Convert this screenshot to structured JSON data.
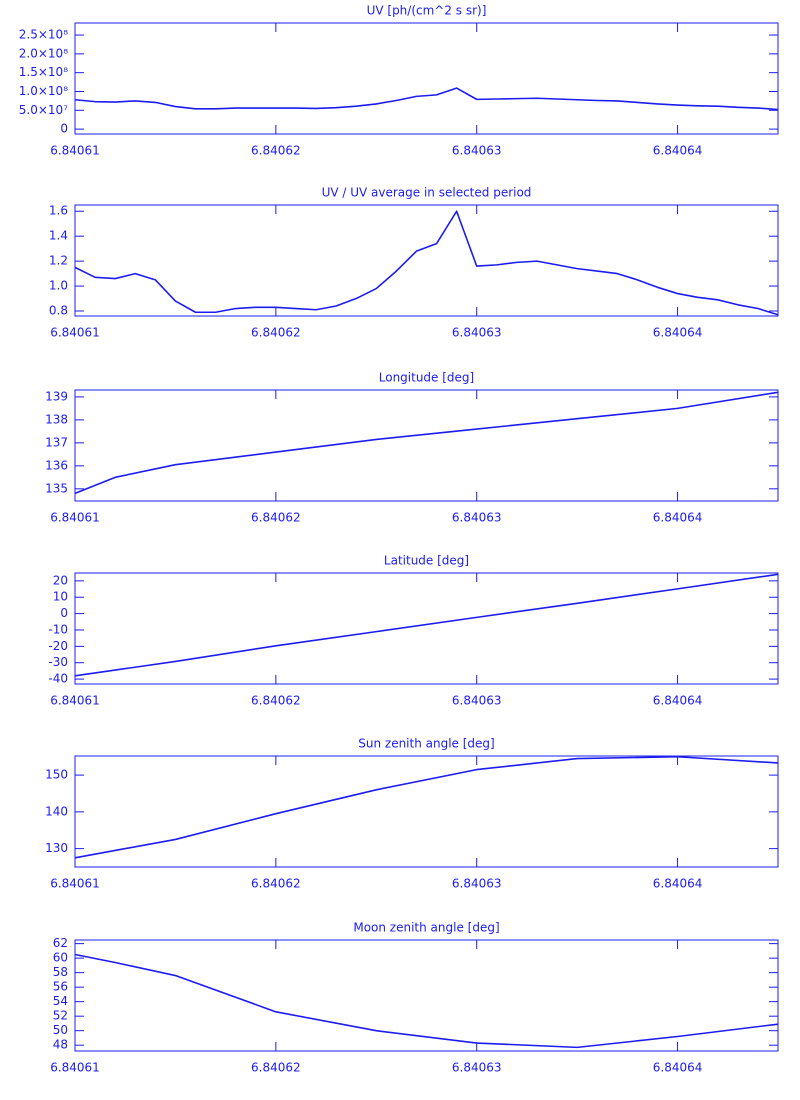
{
  "chart_data": [
    {
      "type": "line",
      "title": "UV [ph/(cm^2 s sr)]",
      "color": "#1c1cf0",
      "x": [
        6.84061,
        6.840611,
        6.840612,
        6.840613,
        6.840614,
        6.840615,
        6.840616,
        6.840617,
        6.840618,
        6.840619,
        6.84062,
        6.840621,
        6.840622,
        6.840623,
        6.840624,
        6.840625,
        6.840626,
        6.840627,
        6.840628,
        6.840629,
        6.84063,
        6.840631,
        6.840632,
        6.840633,
        6.840634,
        6.840635,
        6.840636,
        6.840637,
        6.840638,
        6.840639,
        6.84064,
        6.840641,
        6.840642,
        6.840643,
        6.840644,
        6.840645
      ],
      "values": [
        78000000,
        73000000,
        72000000,
        75000000,
        71000000,
        60000000,
        54000000,
        54000000,
        56000000,
        56000000,
        56000000,
        56000000,
        55000000,
        57000000,
        61000000,
        67000000,
        76000000,
        87000000,
        91000000,
        109000000,
        79000000,
        80000000,
        81000000,
        82000000,
        80000000,
        78000000,
        76000000,
        75000000,
        71000000,
        67000000,
        64000000,
        62000000,
        61000000,
        58000000,
        56000000,
        52000000
      ],
      "xlim": [
        6.84061,
        6.840645
      ],
      "xticks": [
        6.84061,
        6.84062,
        6.84063,
        6.84064
      ],
      "ylim": [
        -13000000,
        282000000
      ],
      "yticks": [
        0,
        {
          "value": 50000000,
          "label": "5.0×10⁷"
        },
        {
          "value": 100000000,
          "label": "1.0×10⁸"
        },
        {
          "value": 150000000,
          "label": "1.5×10⁸"
        },
        {
          "value": 200000000,
          "label": "2.0×10⁸"
        },
        {
          "value": 250000000,
          "label": "2.5×10⁸"
        }
      ]
    },
    {
      "type": "line",
      "title": "UV / UV average in selected period",
      "color": "#1c1cf0",
      "x": [
        6.84061,
        6.840611,
        6.840612,
        6.840613,
        6.840614,
        6.840615,
        6.840616,
        6.840617,
        6.840618,
        6.840619,
        6.84062,
        6.840621,
        6.840622,
        6.840623,
        6.840624,
        6.840625,
        6.840626,
        6.840627,
        6.840628,
        6.840629,
        6.84063,
        6.840631,
        6.840632,
        6.840633,
        6.840634,
        6.840635,
        6.840636,
        6.840637,
        6.840638,
        6.840639,
        6.84064,
        6.840641,
        6.840642,
        6.840643,
        6.840644,
        6.840645
      ],
      "values": [
        1.15,
        1.07,
        1.06,
        1.1,
        1.05,
        0.88,
        0.79,
        0.79,
        0.82,
        0.83,
        0.83,
        0.82,
        0.81,
        0.84,
        0.9,
        0.98,
        1.12,
        1.28,
        1.34,
        1.6,
        1.16,
        1.17,
        1.19,
        1.2,
        1.17,
        1.14,
        1.12,
        1.1,
        1.05,
        0.99,
        0.94,
        0.91,
        0.89,
        0.85,
        0.82,
        0.77
      ],
      "xlim": [
        6.84061,
        6.840645
      ],
      "xticks": [
        6.84061,
        6.84062,
        6.84063,
        6.84064
      ],
      "ylim": [
        0.76,
        1.65
      ],
      "yticks": [
        0.8,
        {
          "value": 1,
          "label": "1.0"
        },
        1.2,
        1.4,
        1.6
      ]
    },
    {
      "type": "line",
      "title": "Longitude [deg]",
      "color": "#1c1cf0",
      "x": [
        6.84061,
        6.840612,
        6.840615,
        6.84062,
        6.840625,
        6.84063,
        6.840635,
        6.84064,
        6.840645
      ],
      "values": [
        134.8,
        135.5,
        136.05,
        136.6,
        137.15,
        137.6,
        138.05,
        138.5,
        139.2
      ],
      "xlim": [
        6.84061,
        6.840645
      ],
      "xticks": [
        6.84061,
        6.84062,
        6.84063,
        6.84064
      ],
      "ylim": [
        134.47,
        139.3
      ],
      "yticks": [
        135,
        136,
        137,
        138,
        139
      ]
    },
    {
      "type": "line",
      "title": "Latitude [deg]",
      "color": "#1c1cf0",
      "x": [
        6.84061,
        6.840612,
        6.840615,
        6.84062,
        6.840625,
        6.84063,
        6.840635,
        6.84064,
        6.840645
      ],
      "values": [
        -38,
        -34.5,
        -29.2,
        -19.7,
        -11,
        -2.3,
        6.3,
        15.1,
        24
      ],
      "xlim": [
        6.84061,
        6.840645
      ],
      "xticks": [
        6.84061,
        6.84062,
        6.84063,
        6.84064
      ],
      "ylim": [
        -43,
        24.8
      ],
      "yticks": [
        -40,
        -30,
        -20,
        -10,
        0,
        10,
        20
      ]
    },
    {
      "type": "line",
      "title": "Sun zenith angle [deg]",
      "color": "#1c1cf0",
      "x": [
        6.84061,
        6.840612,
        6.840615,
        6.84062,
        6.840625,
        6.84063,
        6.840635,
        6.84064,
        6.840645
      ],
      "values": [
        127.5,
        129.5,
        132.5,
        139.5,
        146,
        151.5,
        154.5,
        155,
        153.3
      ],
      "xlim": [
        6.84061,
        6.840645
      ],
      "xticks": [
        6.84061,
        6.84062,
        6.84063,
        6.84064
      ],
      "ylim": [
        125,
        155.2
      ],
      "yticks": [
        130,
        140,
        150
      ]
    },
    {
      "type": "line",
      "title": "Moon zenith angle [deg]",
      "color": "#1c1cf0",
      "x": [
        6.84061,
        6.840612,
        6.840615,
        6.84062,
        6.840625,
        6.84063,
        6.840635,
        6.84064,
        6.840645
      ],
      "values": [
        60.5,
        59.4,
        57.6,
        52.6,
        50,
        48.3,
        47.7,
        49.2,
        50.9
      ],
      "xlim": [
        6.84061,
        6.840645
      ],
      "xticks": [
        6.84061,
        6.84062,
        6.84063,
        6.84064
      ],
      "ylim": [
        47.2,
        62.5
      ],
      "yticks": [
        48,
        50,
        52,
        54,
        56,
        58,
        60,
        62
      ]
    }
  ]
}
